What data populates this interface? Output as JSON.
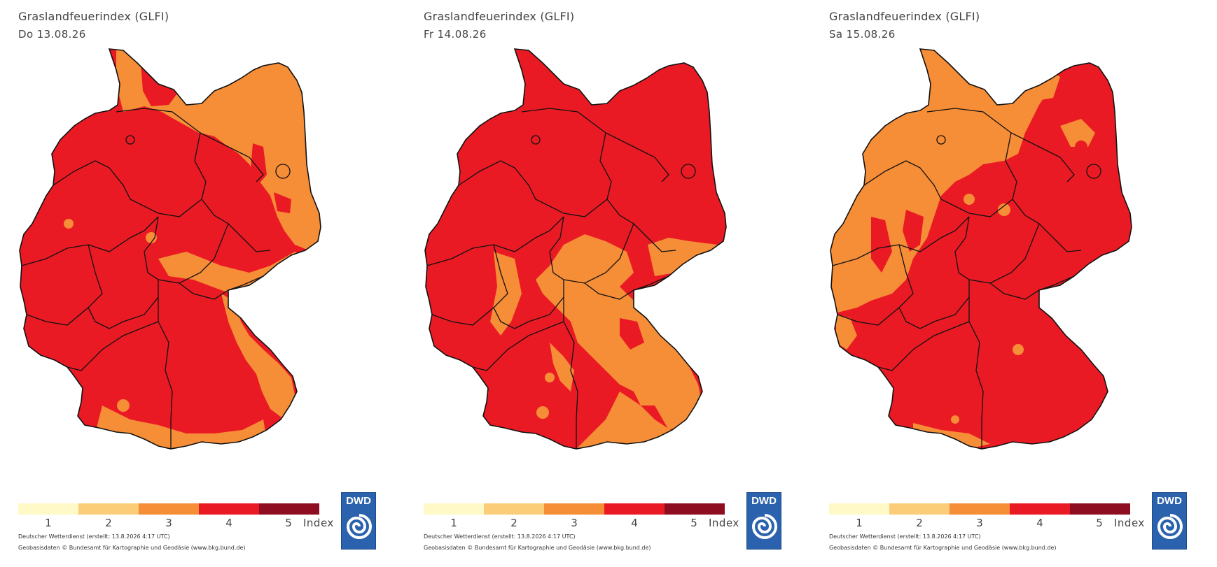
{
  "colors": {
    "class1": "#fff9c8",
    "class2": "#fbcd78",
    "class3": "#f68d37",
    "class4": "#ea1a24",
    "class5": "#8e0d20",
    "border": "#111111",
    "dwd_blue": "#2a62ad"
  },
  "legend": {
    "ticks": [
      "1",
      "2",
      "3",
      "4",
      "5"
    ],
    "unit": "Index"
  },
  "credits": {
    "line1": "Deutscher Wetterdienst (erstellt: 13.8.2026 4:17 UTC)",
    "line2": "Geobasisdaten © Bundesamt für Kartographie und Geodäsie (www.bkg.bund.de)"
  },
  "logo": {
    "text": "DWD",
    "icon": "dwd-spiral-icon"
  },
  "panels": [
    {
      "title": "Graslandfeuerindex (GLFI)",
      "date": "Do 13.08.26",
      "base_class": 4,
      "dominant_low_class": 3,
      "predominant_class": 4
    },
    {
      "title": "Graslandfeuerindex (GLFI)",
      "date": "Fr 14.08.26",
      "base_class": 4,
      "dominant_low_class": 3,
      "predominant_class": 4
    },
    {
      "title": "Graslandfeuerindex (GLFI)",
      "date": "Sa 15.08.26",
      "base_class": 4,
      "dominant_low_class": 3,
      "predominant_class": 4
    }
  ]
}
